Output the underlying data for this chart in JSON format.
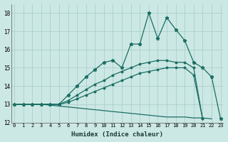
{
  "xlabel": "Humidex (Indice chaleur)",
  "background_color": "#cce8e4",
  "grid_color": "#aacfcb",
  "line_color": "#1a6e64",
  "x_values": [
    0,
    1,
    2,
    3,
    4,
    5,
    6,
    7,
    8,
    9,
    10,
    11,
    12,
    13,
    14,
    15,
    16,
    17,
    18,
    19,
    20,
    21,
    22,
    23
  ],
  "ylim": [
    12.0,
    18.5
  ],
  "xlim": [
    -0.3,
    23.3
  ],
  "yticks": [
    12,
    13,
    14,
    15,
    16,
    17,
    18
  ],
  "series": {
    "line1_jagged": [
      13.0,
      13.0,
      13.0,
      13.0,
      13.0,
      13.0,
      13.5,
      14.0,
      14.5,
      14.9,
      15.3,
      15.4,
      15.0,
      16.3,
      16.3,
      18.0,
      16.6,
      17.75,
      17.1,
      16.5,
      15.3,
      15.0,
      14.5,
      12.2
    ],
    "line2_smooth": [
      13.0,
      13.0,
      13.0,
      13.0,
      13.0,
      13.0,
      13.2,
      13.5,
      13.8,
      14.1,
      14.3,
      14.6,
      14.8,
      15.0,
      15.2,
      15.3,
      15.4,
      15.4,
      15.3,
      15.3,
      15.0,
      12.2,
      null,
      null
    ],
    "line3_smooth": [
      13.0,
      13.0,
      13.0,
      13.0,
      13.0,
      13.0,
      13.1,
      13.3,
      13.5,
      13.7,
      13.9,
      14.1,
      14.3,
      14.5,
      14.7,
      14.8,
      14.9,
      15.0,
      15.0,
      15.0,
      14.6,
      12.2,
      null,
      null
    ],
    "line4_down": [
      13.0,
      13.0,
      13.0,
      13.0,
      12.95,
      12.9,
      12.85,
      12.8,
      12.75,
      12.7,
      12.65,
      12.6,
      12.55,
      12.5,
      12.45,
      12.4,
      12.35,
      12.3,
      12.3,
      12.3,
      12.25,
      12.25,
      12.2,
      null
    ]
  }
}
